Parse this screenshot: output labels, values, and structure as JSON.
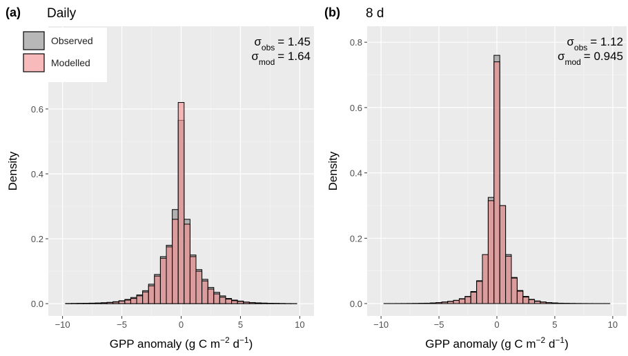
{
  "chart_data": [
    {
      "type": "histogram",
      "label": "(a)",
      "title": "Daily",
      "xlabel": [
        "GPP anomaly (g C m",
        "−2",
        " d",
        "−1",
        ")"
      ],
      "ylabel": "Density",
      "bins": [
        -9.75,
        -9.25,
        -8.75,
        -8.25,
        -7.75,
        -7.25,
        -6.75,
        -6.25,
        -5.75,
        -5.25,
        -4.75,
        -4.25,
        -3.75,
        -3.25,
        -2.75,
        -2.25,
        -1.75,
        -1.25,
        -0.75,
        -0.25,
        0.25,
        0.75,
        1.25,
        1.75,
        2.25,
        2.75,
        3.25,
        3.75,
        4.25,
        4.75,
        5.25,
        5.75,
        6.25,
        6.75,
        7.25,
        7.75,
        8.25,
        8.75,
        9.25,
        9.75
      ],
      "series": [
        {
          "name": "Observed",
          "color": "#8c8c8c",
          "values": [
            0.0005,
            0.0007,
            0.001,
            0.0012,
            0.0016,
            0.002,
            0.003,
            0.004,
            0.006,
            0.009,
            0.013,
            0.019,
            0.027,
            0.04,
            0.06,
            0.09,
            0.145,
            0.18,
            0.29,
            0.565,
            0.26,
            0.15,
            0.105,
            0.075,
            0.05,
            0.035,
            0.024,
            0.016,
            0.011,
            0.008,
            0.005,
            0.0035,
            0.0025,
            0.0018,
            0.0012,
            0.0009,
            0.0006,
            0.0004,
            0.0003
          ]
        },
        {
          "name": "Modelled",
          "color": "#f4908f",
          "values": [
            0.0004,
            0.0006,
            0.0008,
            0.001,
            0.0014,
            0.0018,
            0.0025,
            0.0035,
            0.005,
            0.008,
            0.011,
            0.016,
            0.024,
            0.036,
            0.055,
            0.085,
            0.14,
            0.175,
            0.26,
            0.62,
            0.245,
            0.145,
            0.1,
            0.07,
            0.045,
            0.03,
            0.02,
            0.014,
            0.009,
            0.007,
            0.0045,
            0.003,
            0.002,
            0.0015,
            0.001,
            0.0008,
            0.0005,
            0.0003,
            0.0002
          ]
        }
      ],
      "annotations": [
        [
          "σ",
          "obs",
          "= 1.45"
        ],
        [
          "σ",
          "mod",
          "= 1.64"
        ]
      ],
      "xlim": [
        -11.2,
        11.2
      ],
      "ylim": [
        -0.038,
        0.855
      ],
      "xticks": [
        {
          "value": -10,
          "label": "−10"
        },
        {
          "value": -5,
          "label": "−5"
        },
        0,
        5,
        10
      ],
      "yticks": [
        {
          "value": 0,
          "label": "0.0"
        },
        0.2,
        0.4,
        0.6
      ],
      "grid": true,
      "legend": "top-left"
    },
    {
      "type": "histogram",
      "label": "(b)",
      "title": "8 d",
      "xlabel": [
        "GPP anomaly (g C m",
        "−2",
        " d",
        "−1",
        ")"
      ],
      "ylabel": "Density",
      "bins": [
        -9.75,
        -9.25,
        -8.75,
        -8.25,
        -7.75,
        -7.25,
        -6.75,
        -6.25,
        -5.75,
        -5.25,
        -4.75,
        -4.25,
        -3.75,
        -3.25,
        -2.75,
        -2.25,
        -1.75,
        -1.25,
        -0.75,
        -0.25,
        0.25,
        0.75,
        1.25,
        1.75,
        2.25,
        2.75,
        3.25,
        3.75,
        4.25,
        4.75,
        5.25,
        5.75,
        6.25,
        6.75,
        7.25,
        7.75,
        8.25,
        8.75,
        9.25,
        9.75
      ],
      "series": [
        {
          "color": "#8c8c8c",
          "values": [
            0.0001,
            0.0001,
            0.0002,
            0.0002,
            0.0003,
            0.0005,
            0.0008,
            0.0012,
            0.002,
            0.003,
            0.005,
            0.007,
            0.01,
            0.015,
            0.022,
            0.037,
            0.07,
            0.15,
            0.325,
            0.76,
            0.3,
            0.15,
            0.08,
            0.04,
            0.022,
            0.013,
            0.008,
            0.005,
            0.003,
            0.002,
            0.0012,
            0.0008,
            0.0005,
            0.0003,
            0.0002,
            0.0002,
            0.0001,
            0.0001,
            0.0001
          ]
        },
        {
          "color": "#f4908f",
          "values": [
            0.0001,
            0.0001,
            0.0001,
            0.0002,
            0.0003,
            0.0004,
            0.0007,
            0.001,
            0.0018,
            0.0028,
            0.0045,
            0.0065,
            0.0095,
            0.014,
            0.021,
            0.035,
            0.068,
            0.15,
            0.315,
            0.74,
            0.3,
            0.145,
            0.078,
            0.038,
            0.02,
            0.012,
            0.007,
            0.0045,
            0.0028,
            0.0018,
            0.0011,
            0.0007,
            0.0004,
            0.0003,
            0.0002,
            0.0001,
            0.0001,
            0.0001,
            0.0001
          ]
        }
      ],
      "annotations": [
        [
          "σ",
          "obs",
          "= 1.12"
        ],
        [
          "σ",
          "mod",
          "= 0.945"
        ]
      ],
      "xlim": [
        -11.2,
        11.2
      ],
      "ylim": [
        -0.038,
        0.849
      ],
      "xticks": [
        {
          "value": -10,
          "label": "−10"
        },
        {
          "value": -5,
          "label": "−5"
        },
        0,
        5,
        10
      ],
      "yticks": [
        {
          "value": 0,
          "label": "0.0"
        },
        0.2,
        0.4,
        0.6,
        0.8
      ],
      "grid": true
    }
  ]
}
